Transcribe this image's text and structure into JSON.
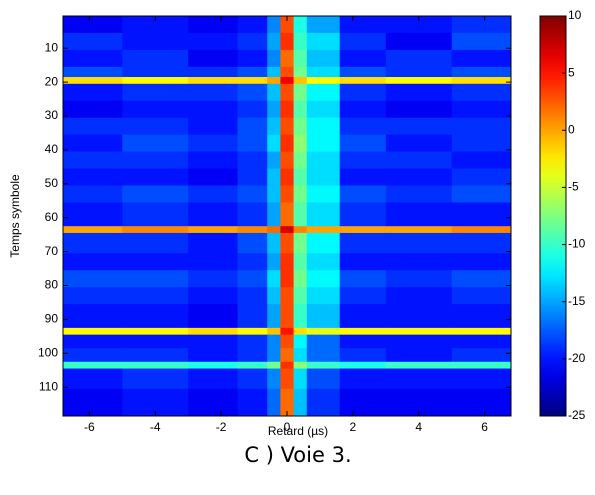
{
  "chart_data": {
    "type": "heatmap",
    "xlabel": "Retard (µs)",
    "ylabel": "Temps symbole",
    "caption": "C ) Voie 3.",
    "x_edges": [
      -6.8,
      -5,
      -3,
      -1.5,
      -0.6,
      -0.2,
      0.2,
      0.6,
      1.6,
      3,
      5,
      6.8
    ],
    "y_edges": [
      0.5,
      5.5,
      10.5,
      15.5,
      18.5,
      20.5,
      25.5,
      30.5,
      35.5,
      40.5,
      45.5,
      50.5,
      55.5,
      62.5,
      64.5,
      70.5,
      75.5,
      80.5,
      85.5,
      92.5,
      94.5,
      98.5,
      102.5,
      104.5,
      110.5,
      118.5
    ],
    "z": [
      [
        -21,
        -20,
        -21,
        -20,
        -16,
        3,
        -11,
        -15,
        -20,
        -20,
        -19
      ],
      [
        -19,
        -20,
        -20,
        -19,
        -15,
        4,
        -10,
        -13,
        -19,
        -21,
        -18
      ],
      [
        -20,
        -19,
        -21,
        -20,
        -16,
        2,
        -9,
        -14,
        -20,
        -19,
        -20
      ],
      [
        -18,
        -19,
        -19,
        -18,
        -14,
        3,
        -8,
        -13,
        -18,
        -19,
        -18
      ],
      [
        -2,
        -3,
        -2,
        -2,
        0,
        6,
        -1,
        -3,
        -2,
        -3,
        -2
      ],
      [
        -20,
        -19,
        -19,
        -18,
        -14,
        3,
        -8,
        -12,
        -19,
        -20,
        -19
      ],
      [
        -21,
        -20,
        -20,
        -19,
        -15,
        4,
        -9,
        -13,
        -20,
        -21,
        -20
      ],
      [
        -19,
        -19,
        -20,
        -18,
        -14,
        3,
        -8,
        -12,
        -19,
        -19,
        -19
      ],
      [
        -20,
        -18,
        -19,
        -18,
        -13,
        4,
        -7,
        -12,
        -18,
        -20,
        -19
      ],
      [
        -19,
        -19,
        -20,
        -19,
        -15,
        3,
        -8,
        -13,
        -19,
        -19,
        -20
      ],
      [
        -20,
        -20,
        -21,
        -19,
        -14,
        4,
        -9,
        -13,
        -20,
        -20,
        -19
      ],
      [
        -19,
        -18,
        -19,
        -18,
        -14,
        3,
        -8,
        -12,
        -18,
        -19,
        -18
      ],
      [
        -20,
        -19,
        -20,
        -19,
        -15,
        2,
        -9,
        -13,
        -19,
        -20,
        -20
      ],
      [
        0,
        1,
        0,
        1,
        2,
        7,
        1,
        0,
        0,
        0,
        1
      ],
      [
        -19,
        -19,
        -20,
        -18,
        -14,
        3,
        -8,
        -12,
        -19,
        -19,
        -19
      ],
      [
        -20,
        -20,
        -20,
        -19,
        -15,
        4,
        -9,
        -13,
        -20,
        -20,
        -20
      ],
      [
        -18,
        -18,
        -19,
        -18,
        -13,
        4,
        -8,
        -12,
        -18,
        -19,
        -18
      ],
      [
        -19,
        -19,
        -20,
        -19,
        -14,
        3,
        -9,
        -13,
        -19,
        -20,
        -19
      ],
      [
        -20,
        -20,
        -21,
        -19,
        -15,
        3,
        -10,
        -14,
        -20,
        -20,
        -20
      ],
      [
        -3,
        -3,
        -2,
        -3,
        -1,
        5,
        -2,
        -4,
        -3,
        -3,
        -3
      ],
      [
        -20,
        -20,
        -20,
        -19,
        -16,
        3,
        -12,
        -17,
        -20,
        -20,
        -20
      ],
      [
        -19,
        -19,
        -20,
        -19,
        -16,
        2,
        -13,
        -17,
        -19,
        -20,
        -19
      ],
      [
        -10,
        -10,
        -11,
        -10,
        -8,
        4,
        -7,
        -10,
        -11,
        -10,
        -10
      ],
      [
        -20,
        -19,
        -20,
        -19,
        -16,
        3,
        -13,
        -18,
        -20,
        -20,
        -20
      ],
      [
        -21,
        -20,
        -21,
        -20,
        -17,
        2,
        -14,
        -19,
        -21,
        -21,
        -21
      ]
    ],
    "colormap": "jet",
    "clim": [
      -25,
      10
    ],
    "cticks": [
      10,
      5,
      0,
      -5,
      -10,
      -15,
      -20,
      -25
    ],
    "xlim": [
      -6.8,
      6.8
    ],
    "xticks": [
      -6,
      -4,
      -2,
      0,
      2,
      4,
      6
    ],
    "ylim": [
      0.5,
      118.5
    ],
    "yticks": [
      10,
      20,
      30,
      40,
      50,
      60,
      70,
      80,
      90,
      100,
      110
    ],
    "y_reversed": true
  }
}
